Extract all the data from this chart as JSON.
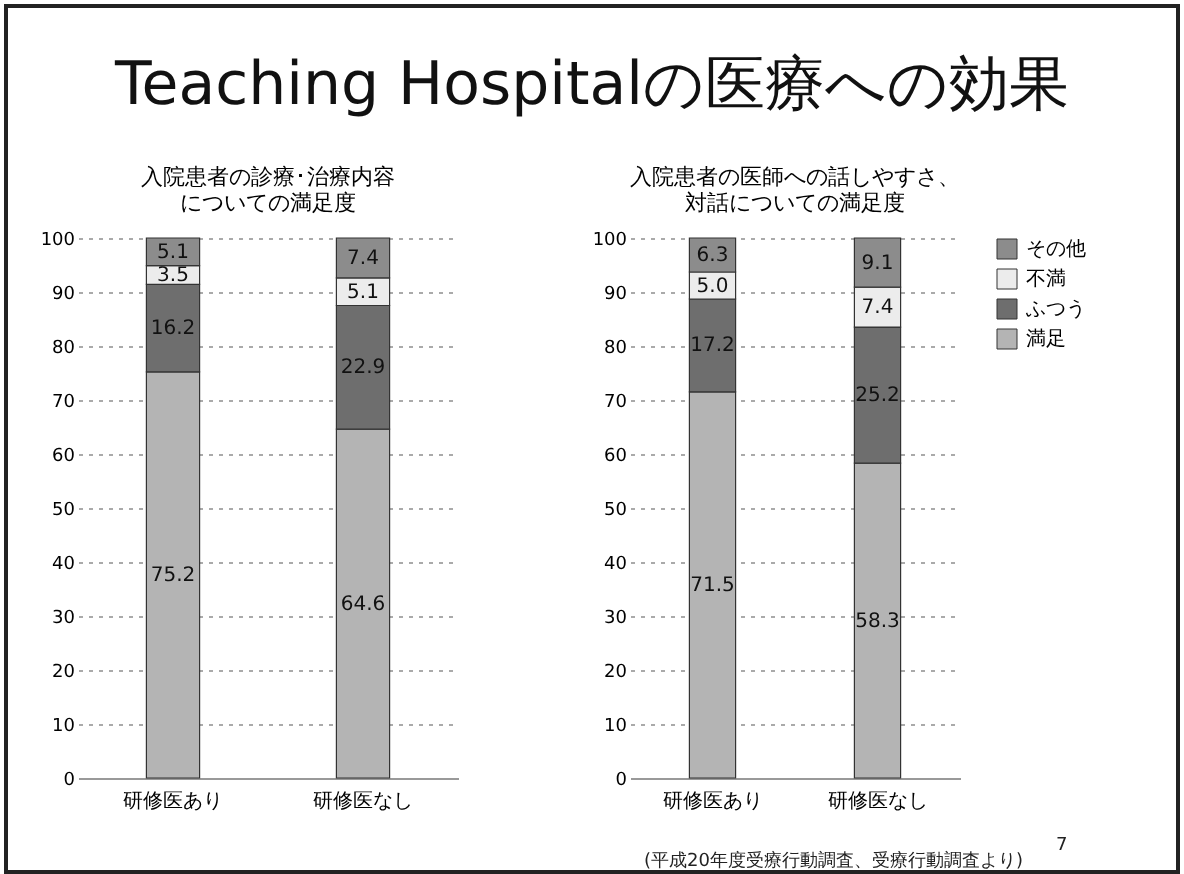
{
  "chart_data": [
    {
      "type": "bar",
      "title": "入院患者の診療･治療内容についての満足度",
      "annotations": [
        "Teaching Hospitalの医療への効果"
      ],
      "categories": [
        "研修医あり",
        "研修医なし"
      ],
      "stacked": true,
      "ylim": [
        0,
        100
      ],
      "yticks": [
        0,
        10,
        20,
        30,
        40,
        50,
        60,
        70,
        80,
        90,
        100
      ],
      "grid": "y",
      "legend": false,
      "series": [
        {
          "color": "#b4b4b4",
          "values": [
            75.2,
            64.6
          ],
          "value_labels": [
            "75.2",
            "64.6"
          ]
        },
        {
          "color": "#6e6e6e",
          "values": [
            16.2,
            22.9
          ],
          "value_labels": [
            "16.2",
            "22.9"
          ]
        },
        {
          "color": "#ececec",
          "values": [
            3.5,
            5.1
          ],
          "value_labels": [
            "3.5",
            "5.1"
          ]
        },
        {
          "color": "#8c8c8c",
          "values": [
            5.1,
            7.4
          ],
          "value_labels": [
            "5.1",
            "7.4"
          ]
        }
      ]
    },
    {
      "type": "bar",
      "title": "入院患者の医師への話しやすさ、対話についての満足度",
      "annotations": [
        "(平成20年度受療行動調査、受療行動調査より)",
        "7"
      ],
      "categories": [
        "研修医あり",
        "研修医なし"
      ],
      "stacked": true,
      "ylim": [
        0,
        100
      ],
      "yticks": [
        0,
        10,
        20,
        30,
        40,
        50,
        60,
        70,
        80,
        90,
        100
      ],
      "grid": "y",
      "legend": "right",
      "series": [
        {
          "name": "満足",
          "color": "#b4b4b4",
          "values": [
            71.5,
            58.3
          ],
          "value_labels": [
            "71.5",
            "58.3"
          ]
        },
        {
          "name": "ふつう",
          "color": "#6e6e6e",
          "values": [
            17.2,
            25.2
          ],
          "value_labels": [
            "17.2",
            "25.2"
          ]
        },
        {
          "name": "不満",
          "color": "#ececec",
          "values": [
            5.0,
            7.4
          ],
          "value_labels": [
            "5.0",
            "7.4"
          ]
        },
        {
          "name": "その他",
          "color": "#8c8c8c",
          "values": [
            6.3,
            9.1
          ],
          "value_labels": [
            "6.3",
            "9.1"
          ]
        }
      ]
    }
  ]
}
